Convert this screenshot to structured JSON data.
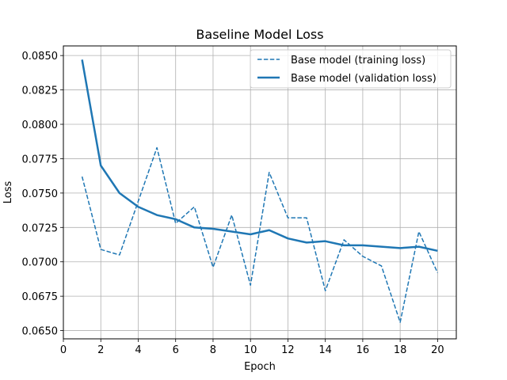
{
  "chart_data": {
    "type": "line",
    "title": "Baseline Model Loss",
    "xlabel": "Epoch",
    "ylabel": "Loss",
    "xlim": [
      0,
      21
    ],
    "ylim": [
      0.0644,
      0.0857
    ],
    "xticks": [
      0,
      2,
      4,
      6,
      8,
      10,
      12,
      14,
      16,
      18,
      20
    ],
    "yticks": [
      0.065,
      0.0675,
      0.07,
      0.0725,
      0.075,
      0.0775,
      0.08,
      0.0825,
      0.085
    ],
    "ytick_labels": [
      "0.0650",
      "0.0675",
      "0.0700",
      "0.0725",
      "0.0750",
      "0.0775",
      "0.0800",
      "0.0825",
      "0.0850"
    ],
    "grid": true,
    "legend_position": "top-right",
    "x": [
      1,
      2,
      3,
      4,
      5,
      6,
      7,
      8,
      9,
      10,
      11,
      12,
      13,
      14,
      15,
      16,
      17,
      18,
      19,
      20
    ],
    "series": [
      {
        "name": "Base model (training loss)",
        "style": "dashed",
        "color": "#1f77b4",
        "values": [
          0.0762,
          0.0709,
          0.0705,
          0.0744,
          0.0783,
          0.0728,
          0.074,
          0.0696,
          0.0734,
          0.0683,
          0.0765,
          0.0732,
          0.0732,
          0.0679,
          0.0716,
          0.0704,
          0.0697,
          0.0656,
          0.0722,
          0.0692
        ]
      },
      {
        "name": "Base model (validation loss)",
        "style": "solid",
        "color": "#1f77b4",
        "values": [
          0.0847,
          0.077,
          0.075,
          0.074,
          0.0734,
          0.0731,
          0.0725,
          0.0724,
          0.0722,
          0.072,
          0.0723,
          0.0717,
          0.0714,
          0.0715,
          0.0712,
          0.0712,
          0.0711,
          0.071,
          0.0711,
          0.0708
        ]
      }
    ]
  }
}
